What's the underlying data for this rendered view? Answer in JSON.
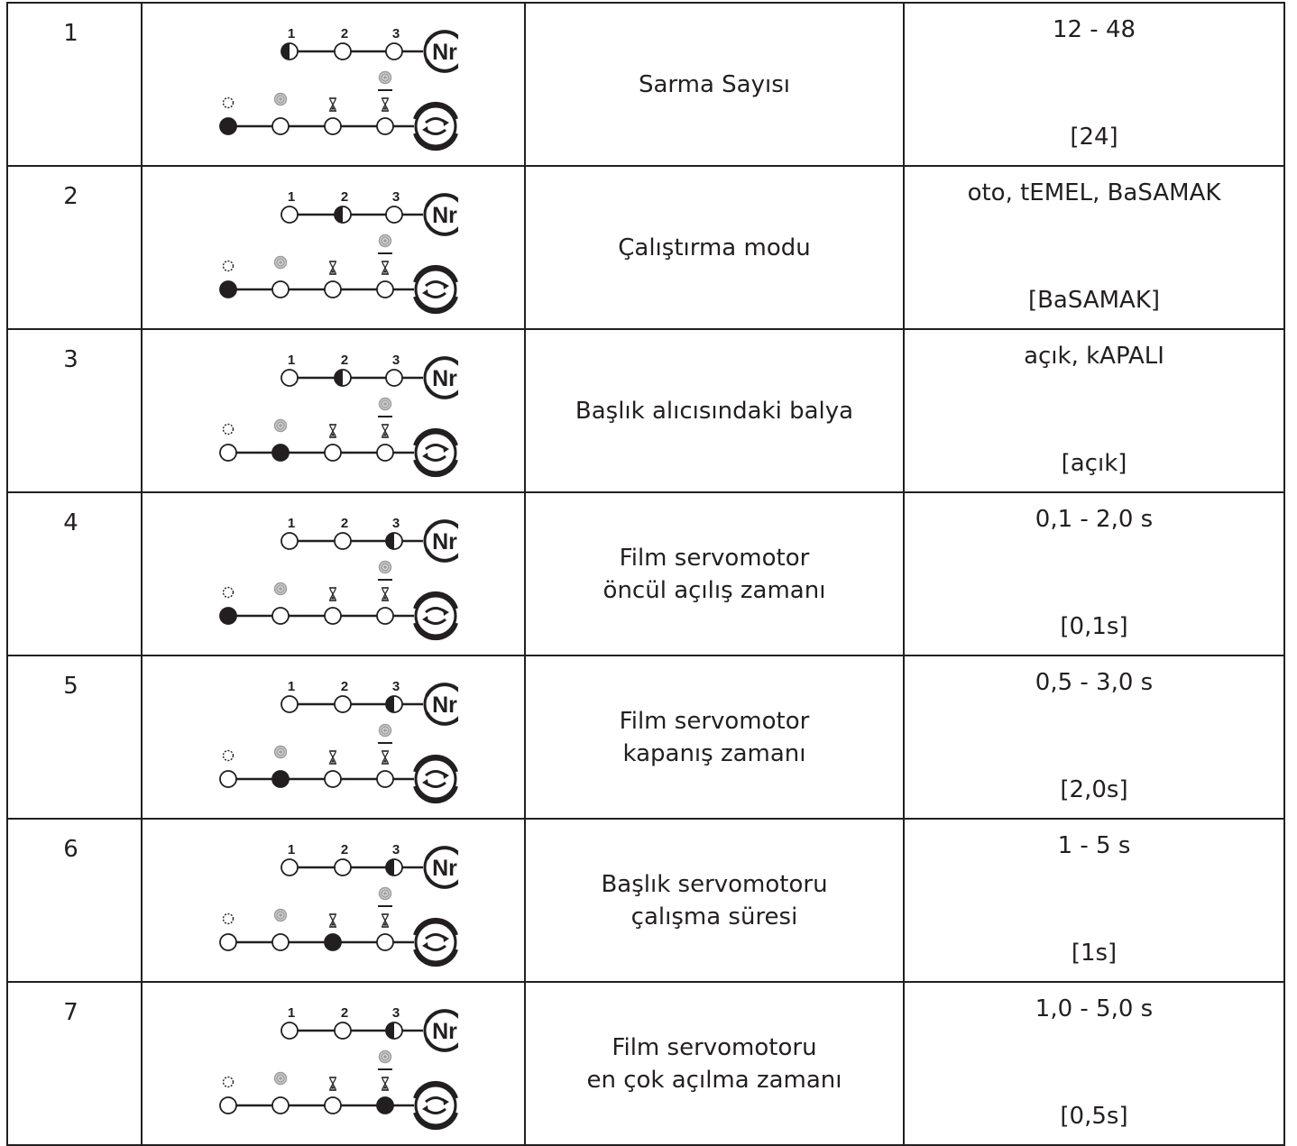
{
  "rows": [
    {
      "num": "1",
      "desc": [
        "Sarma Sayısı"
      ],
      "range": "12 - 48",
      "default": "[24]",
      "top_active": 1,
      "bottom_active": 1
    },
    {
      "num": "2",
      "desc": [
        "Çalıştırma modu"
      ],
      "range": "oto, tEMEL, BaSAMAK",
      "default": "[BaSAMAK]",
      "top_active": 2,
      "bottom_active": 1
    },
    {
      "num": "3",
      "desc": [
        "Başlık alıcısındaki balya"
      ],
      "range": "açık, kAPALI",
      "default": "[açık]",
      "top_active": 2,
      "bottom_active": 2
    },
    {
      "num": "4",
      "desc": [
        "Film servomotor",
        "öncül açılış zamanı"
      ],
      "range": "0,1 - 2,0 s",
      "default": "[0,1s]",
      "top_active": 3,
      "bottom_active": 1
    },
    {
      "num": "5",
      "desc": [
        "Film servomotor",
        "kapanış zamanı"
      ],
      "range": "0,5 - 3,0 s",
      "default": "[2,0s]",
      "top_active": 3,
      "bottom_active": 2
    },
    {
      "num": "6",
      "desc": [
        "Başlık servomotoru",
        "çalışma süresi"
      ],
      "range": "1 - 5 s",
      "default": "[1s]",
      "top_active": 3,
      "bottom_active": 3
    },
    {
      "num": "7",
      "desc": [
        "Film servomotoru",
        "en çok açılma zamanı"
      ],
      "range": "1,0 - 5,0 s",
      "default": "[0,5s]",
      "top_active": 3,
      "bottom_active": 4
    }
  ],
  "indicator": {
    "top_labels": [
      "1",
      "2",
      "3"
    ],
    "top_end_label": "Nr",
    "top_end_icon": "nr-circle-icon",
    "bottom_label_icons": [
      "sun-icon",
      "bale-icon",
      "hourglass-icon",
      "bale-over-hourglass-icon"
    ],
    "bottom_end_icon": "rotate-arrows-icon"
  },
  "colors": {
    "ink": "#231f20",
    "gray": "#9b9b9b",
    "background": "#ffffff"
  }
}
